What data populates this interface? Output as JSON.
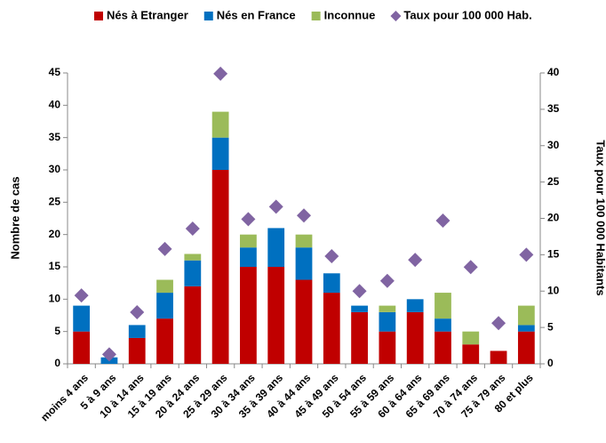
{
  "chart_data": {
    "type": "bar",
    "stacked": true,
    "y_label": "Nombre de cas",
    "y2_label": "Taux pour 100 000 Habitants",
    "categories": [
      "moins 4 ans",
      "5 à 9 ans",
      "10 à 14 ans",
      "15 à 19 ans",
      "20 à 24 ans",
      "25 à 29 ans",
      "30 à 34 ans",
      "35 à 39 ans",
      "40 à 44 ans",
      "45 à 49 ans",
      "50 à 54 ans",
      "55 à 59 ans",
      "60 à 64 ans",
      "65 à 69 ans",
      "70 à 74 ans",
      "75 à 79 ans",
      "80 et plus"
    ],
    "series": [
      {
        "name": "Nés à Etranger",
        "color": "#c00000",
        "values": [
          5,
          0,
          4,
          7,
          12,
          30,
          15,
          15,
          13,
          11,
          8,
          5,
          8,
          5,
          3,
          2,
          5
        ]
      },
      {
        "name": "Nés en France",
        "color": "#0070c0",
        "values": [
          4,
          1,
          2,
          4,
          4,
          5,
          3,
          6,
          5,
          3,
          1,
          3,
          2,
          2,
          0,
          0,
          1
        ]
      },
      {
        "name": "Inconnue",
        "color": "#9bbb59",
        "values": [
          0,
          0,
          0,
          2,
          1,
          4,
          2,
          0,
          2,
          0,
          0,
          1,
          0,
          4,
          2,
          0,
          3
        ]
      },
      {
        "name": "Taux pour 100 000 Hab.",
        "color": "#8064a2",
        "axis": "y2",
        "marker": "diamond",
        "values": [
          9.4,
          1.3,
          7.1,
          15.8,
          18.6,
          39.9,
          19.9,
          21.6,
          20.4,
          14.8,
          10,
          11.4,
          14.3,
          19.7,
          13.3,
          5.6,
          15
        ]
      }
    ],
    "ylim": [
      0,
      45
    ],
    "yticks": [
      0,
      5,
      10,
      15,
      20,
      25,
      30,
      35,
      40,
      45
    ],
    "y2lim": [
      0,
      40
    ],
    "y2ticks": [
      0,
      5,
      10,
      15,
      20,
      25,
      30,
      35,
      40
    ],
    "legend": "top",
    "grid": false
  }
}
